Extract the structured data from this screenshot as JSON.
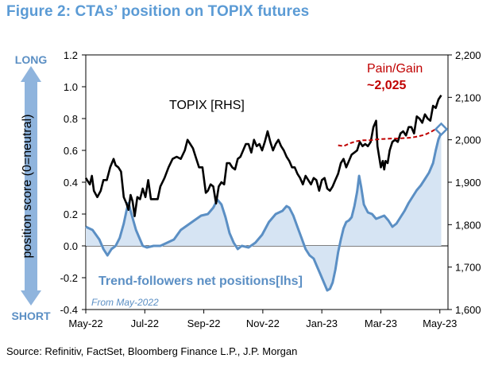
{
  "title": "Figure 2: CTAs’ position on TOPIX futures",
  "source": "Source: Refinitiv, FactSet, Bloomberg Finance L.P., J.P. Morgan",
  "chart_data": {
    "type": "area",
    "x_tick_labels": [
      "May-22",
      "Jul-22",
      "Sep-22",
      "Nov-22",
      "Jan-23",
      "Mar-23",
      "May-23"
    ],
    "y_left": {
      "label": "position score (0=neutral)",
      "ticks": [
        -0.4,
        -0.2,
        0.0,
        0.2,
        0.4,
        0.6,
        0.8,
        1.0,
        1.2
      ],
      "range": [
        -0.4,
        1.2
      ]
    },
    "y_right": {
      "ticks": [
        1600,
        1700,
        1800,
        1900,
        2000,
        2100,
        2200
      ],
      "range": [
        1600,
        2200
      ]
    },
    "axis_end_labels": {
      "top": "LONG",
      "bottom": "SHORT"
    },
    "annotations": {
      "topix_label": "TOPIX [RHS]",
      "positions_label": "Trend-followers net positions[lhs]",
      "from_label": "From May-2022",
      "pain_gain_title": "Pain/Gain",
      "pain_gain_value": "~2,025"
    },
    "colors": {
      "positions": "#5b8fc4",
      "positions_fill": "#d6e4f3",
      "topix": "#000000",
      "pain_gain": "#c00000",
      "title": "#5b9bd5",
      "arrow": "#8fb4dd"
    },
    "series": [
      {
        "name": "Trend-followers net positions[lhs]",
        "axis": "left",
        "points": [
          [
            0.0,
            0.12
          ],
          [
            0.5,
            0.1
          ],
          [
            1.0,
            0.04
          ],
          [
            1.3,
            -0.02
          ],
          [
            1.6,
            -0.06
          ],
          [
            1.9,
            -0.02
          ],
          [
            2.2,
            0.0
          ],
          [
            2.5,
            0.05
          ],
          [
            2.8,
            0.14
          ],
          [
            3.0,
            0.22
          ],
          [
            3.15,
            0.27
          ],
          [
            3.3,
            0.22
          ],
          [
            3.5,
            0.16
          ],
          [
            3.7,
            0.1
          ],
          [
            3.9,
            0.06
          ],
          [
            4.05,
            0.03
          ],
          [
            4.2,
            0.0
          ],
          [
            4.5,
            -0.01
          ],
          [
            5.0,
            0.0
          ],
          [
            5.5,
            0.0
          ],
          [
            6.0,
            0.02
          ],
          [
            6.5,
            0.04
          ],
          [
            7.0,
            0.1
          ],
          [
            7.5,
            0.13
          ],
          [
            8.0,
            0.16
          ],
          [
            8.5,
            0.19
          ],
          [
            9.0,
            0.2
          ],
          [
            9.4,
            0.24
          ],
          [
            9.7,
            0.29
          ],
          [
            10.0,
            0.26
          ],
          [
            10.3,
            0.18
          ],
          [
            10.6,
            0.08
          ],
          [
            10.9,
            0.02
          ],
          [
            11.2,
            -0.02
          ],
          [
            11.5,
            0.0
          ],
          [
            12.0,
            -0.01
          ],
          [
            12.5,
            0.02
          ],
          [
            13.0,
            0.07
          ],
          [
            13.5,
            0.15
          ],
          [
            14.0,
            0.2
          ],
          [
            14.5,
            0.22
          ],
          [
            14.8,
            0.25
          ],
          [
            15.0,
            0.24
          ],
          [
            15.3,
            0.19
          ],
          [
            15.6,
            0.12
          ],
          [
            15.9,
            0.05
          ],
          [
            16.2,
            -0.02
          ],
          [
            16.5,
            -0.06
          ],
          [
            16.8,
            -0.08
          ],
          [
            17.0,
            -0.12
          ],
          [
            17.3,
            -0.18
          ],
          [
            17.6,
            -0.24
          ],
          [
            17.8,
            -0.28
          ],
          [
            18.0,
            -0.27
          ],
          [
            18.2,
            -0.23
          ],
          [
            18.4,
            -0.15
          ],
          [
            18.6,
            -0.04
          ],
          [
            18.8,
            0.04
          ],
          [
            19.0,
            0.11
          ],
          [
            19.2,
            0.15
          ],
          [
            19.4,
            0.16
          ],
          [
            19.6,
            0.18
          ],
          [
            19.8,
            0.25
          ],
          [
            20.0,
            0.34
          ],
          [
            20.15,
            0.44
          ],
          [
            20.3,
            0.37
          ],
          [
            20.5,
            0.26
          ],
          [
            20.8,
            0.21
          ],
          [
            21.1,
            0.2
          ],
          [
            21.4,
            0.17
          ],
          [
            21.7,
            0.18
          ],
          [
            22.0,
            0.19
          ],
          [
            22.3,
            0.16
          ],
          [
            22.6,
            0.12
          ],
          [
            22.9,
            0.14
          ],
          [
            23.2,
            0.18
          ],
          [
            23.5,
            0.22
          ],
          [
            23.8,
            0.27
          ],
          [
            24.1,
            0.31
          ],
          [
            24.4,
            0.35
          ],
          [
            24.7,
            0.38
          ],
          [
            25.0,
            0.42
          ],
          [
            25.3,
            0.46
          ],
          [
            25.6,
            0.52
          ],
          [
            25.8,
            0.6
          ],
          [
            26.0,
            0.67
          ],
          [
            26.2,
            0.71
          ]
        ]
      },
      {
        "name": "TOPIX [RHS]",
        "axis": "right",
        "points": [
          [
            0.0,
            1910
          ],
          [
            0.3,
            1895
          ],
          [
            0.45,
            1915
          ],
          [
            0.6,
            1880
          ],
          [
            0.85,
            1865
          ],
          [
            1.1,
            1880
          ],
          [
            1.3,
            1905
          ],
          [
            1.55,
            1905
          ],
          [
            1.8,
            1935
          ],
          [
            2.05,
            1955
          ],
          [
            2.2,
            1940
          ],
          [
            2.4,
            1935
          ],
          [
            2.6,
            1925
          ],
          [
            2.8,
            1865
          ],
          [
            3.0,
            1850
          ],
          [
            3.15,
            1835
          ],
          [
            3.3,
            1870
          ],
          [
            3.45,
            1855
          ],
          [
            3.6,
            1820
          ],
          [
            3.8,
            1865
          ],
          [
            4.0,
            1860
          ],
          [
            4.2,
            1885
          ],
          [
            4.4,
            1865
          ],
          [
            4.6,
            1905
          ],
          [
            4.8,
            1860
          ],
          [
            5.0,
            1860
          ],
          [
            5.3,
            1860
          ],
          [
            5.5,
            1890
          ],
          [
            5.8,
            1910
          ],
          [
            6.1,
            1935
          ],
          [
            6.4,
            1955
          ],
          [
            6.7,
            1960
          ],
          [
            7.0,
            1955
          ],
          [
            7.3,
            1975
          ],
          [
            7.5,
            2000
          ],
          [
            7.7,
            1990
          ],
          [
            7.9,
            1980
          ],
          [
            8.1,
            1960
          ],
          [
            8.35,
            1935
          ],
          [
            8.6,
            1935
          ],
          [
            8.85,
            1875
          ],
          [
            9.0,
            1880
          ],
          [
            9.2,
            1895
          ],
          [
            9.4,
            1890
          ],
          [
            9.6,
            1850
          ],
          [
            9.8,
            1890
          ],
          [
            10.0,
            1900
          ],
          [
            10.2,
            1895
          ],
          [
            10.4,
            1945
          ],
          [
            10.6,
            1945
          ],
          [
            10.8,
            1935
          ],
          [
            11.0,
            1930
          ],
          [
            11.2,
            1955
          ],
          [
            11.4,
            1960
          ],
          [
            11.6,
            1975
          ],
          [
            11.8,
            1990
          ],
          [
            12.0,
            1990
          ],
          [
            12.2,
            1970
          ],
          [
            12.4,
            2000
          ],
          [
            12.6,
            1985
          ],
          [
            12.8,
            1990
          ],
          [
            13.0,
            1975
          ],
          [
            13.2,
            1995
          ],
          [
            13.4,
            2020
          ],
          [
            13.6,
            1995
          ],
          [
            13.8,
            1975
          ],
          [
            14.0,
            1990
          ],
          [
            14.2,
            2000
          ],
          [
            14.4,
            1985
          ],
          [
            14.6,
            1975
          ],
          [
            14.8,
            1960
          ],
          [
            15.0,
            1950
          ],
          [
            15.2,
            1935
          ],
          [
            15.4,
            1935
          ],
          [
            15.6,
            1920
          ],
          [
            15.8,
            1910
          ],
          [
            16.0,
            1895
          ],
          [
            16.2,
            1915
          ],
          [
            16.4,
            1905
          ],
          [
            16.6,
            1895
          ],
          [
            16.8,
            1910
          ],
          [
            17.0,
            1905
          ],
          [
            17.2,
            1880
          ],
          [
            17.4,
            1905
          ],
          [
            17.6,
            1910
          ],
          [
            17.8,
            1885
          ],
          [
            18.0,
            1880
          ],
          [
            18.2,
            1890
          ],
          [
            18.4,
            1905
          ],
          [
            18.6,
            1920
          ],
          [
            18.8,
            1945
          ],
          [
            19.0,
            1955
          ],
          [
            19.2,
            1935
          ],
          [
            19.4,
            1950
          ],
          [
            19.6,
            1965
          ],
          [
            19.8,
            1970
          ],
          [
            20.0,
            1975
          ],
          [
            20.2,
            1995
          ],
          [
            20.4,
            1985
          ],
          [
            20.6,
            1990
          ],
          [
            20.8,
            1985
          ],
          [
            21.0,
            1995
          ],
          [
            21.2,
            2030
          ],
          [
            21.4,
            2045
          ],
          [
            21.5,
            1985
          ],
          [
            21.6,
            1965
          ],
          [
            21.75,
            1935
          ],
          [
            21.9,
            1950
          ],
          [
            22.0,
            1930
          ],
          [
            22.1,
            1950
          ],
          [
            22.25,
            1945
          ],
          [
            22.4,
            1975
          ],
          [
            22.6,
            1995
          ],
          [
            22.8,
            2000
          ],
          [
            23.0,
            1995
          ],
          [
            23.2,
            2015
          ],
          [
            23.4,
            2020
          ],
          [
            23.6,
            2010
          ],
          [
            23.8,
            2030
          ],
          [
            24.0,
            2030
          ],
          [
            24.2,
            2015
          ],
          [
            24.4,
            2055
          ],
          [
            24.6,
            2050
          ],
          [
            24.8,
            2040
          ],
          [
            25.0,
            2060
          ],
          [
            25.2,
            2050
          ],
          [
            25.4,
            2045
          ],
          [
            25.6,
            2080
          ],
          [
            25.8,
            2075
          ],
          [
            26.0,
            2095
          ],
          [
            26.2,
            2105
          ]
        ]
      },
      {
        "name": "Pain/Gain",
        "axis": "right",
        "style": "dashed",
        "points": [
          [
            18.6,
            1987
          ],
          [
            19.0,
            1985
          ],
          [
            19.5,
            1992
          ],
          [
            20.0,
            1997
          ],
          [
            20.5,
            1999
          ],
          [
            21.0,
            1999
          ],
          [
            21.5,
            2001
          ],
          [
            22.0,
            2002
          ],
          [
            22.5,
            2003
          ],
          [
            23.0,
            2003
          ],
          [
            23.5,
            2004
          ],
          [
            24.0,
            2005
          ],
          [
            24.5,
            2008
          ],
          [
            25.0,
            2012
          ],
          [
            25.4,
            2018
          ],
          [
            25.8,
            2025
          ],
          [
            26.1,
            2031
          ]
        ]
      }
    ],
    "marker": {
      "x": 26.2,
      "y_right": 2025,
      "shape": "diamond"
    }
  }
}
